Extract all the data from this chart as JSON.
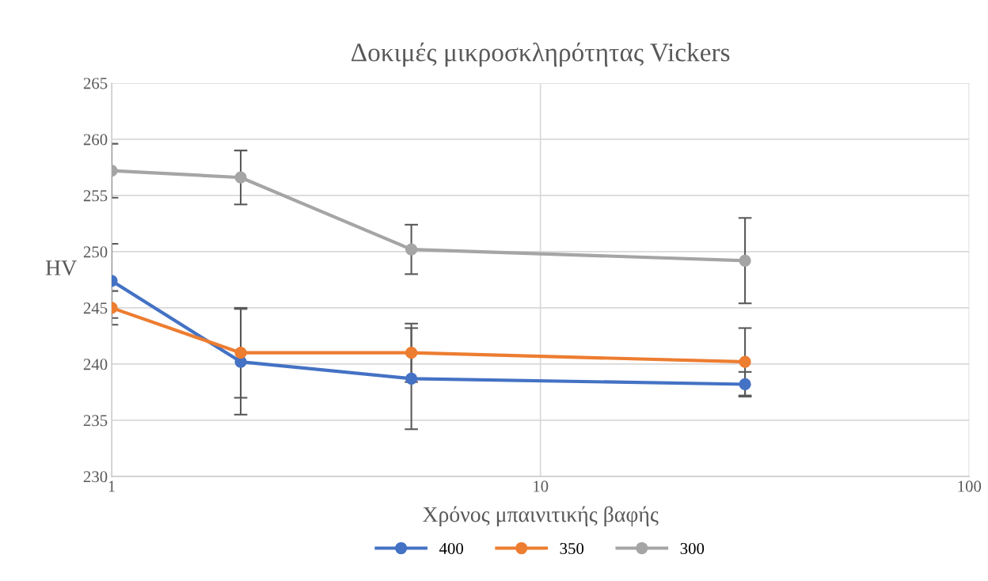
{
  "chart_data": {
    "type": "line",
    "title": "Δοκιμές μικροσκληρότητας Vickers",
    "xlabel": "Χρόνος μπαινιτικής βαφής",
    "ylabel": "HV",
    "x": [
      1,
      2,
      5,
      30
    ],
    "series": [
      {
        "name": "400",
        "color": "#4472c4",
        "values": [
          247.4,
          240.2,
          238.7,
          238.2
        ],
        "errors": [
          3.3,
          4.7,
          4.5,
          1.1
        ]
      },
      {
        "name": "350",
        "color": "#ed7d31",
        "values": [
          245.0,
          241.0,
          241.0,
          240.2
        ],
        "errors": [
          1.5,
          4.0,
          2.6,
          3.0
        ]
      },
      {
        "name": "300",
        "color": "#a5a5a5",
        "values": [
          257.2,
          256.6,
          250.2,
          249.2
        ],
        "errors": [
          2.4,
          2.4,
          2.2,
          3.8
        ]
      }
    ],
    "log": "x",
    "xlim": [
      1,
      100
    ],
    "xticks": [
      1,
      10,
      100
    ],
    "ylim": [
      230,
      265
    ],
    "yticks": [
      230,
      235,
      240,
      245,
      250,
      255,
      260,
      265
    ],
    "grid": true,
    "legend": "bottom",
    "marker": "circle",
    "line_style": "solid"
  }
}
